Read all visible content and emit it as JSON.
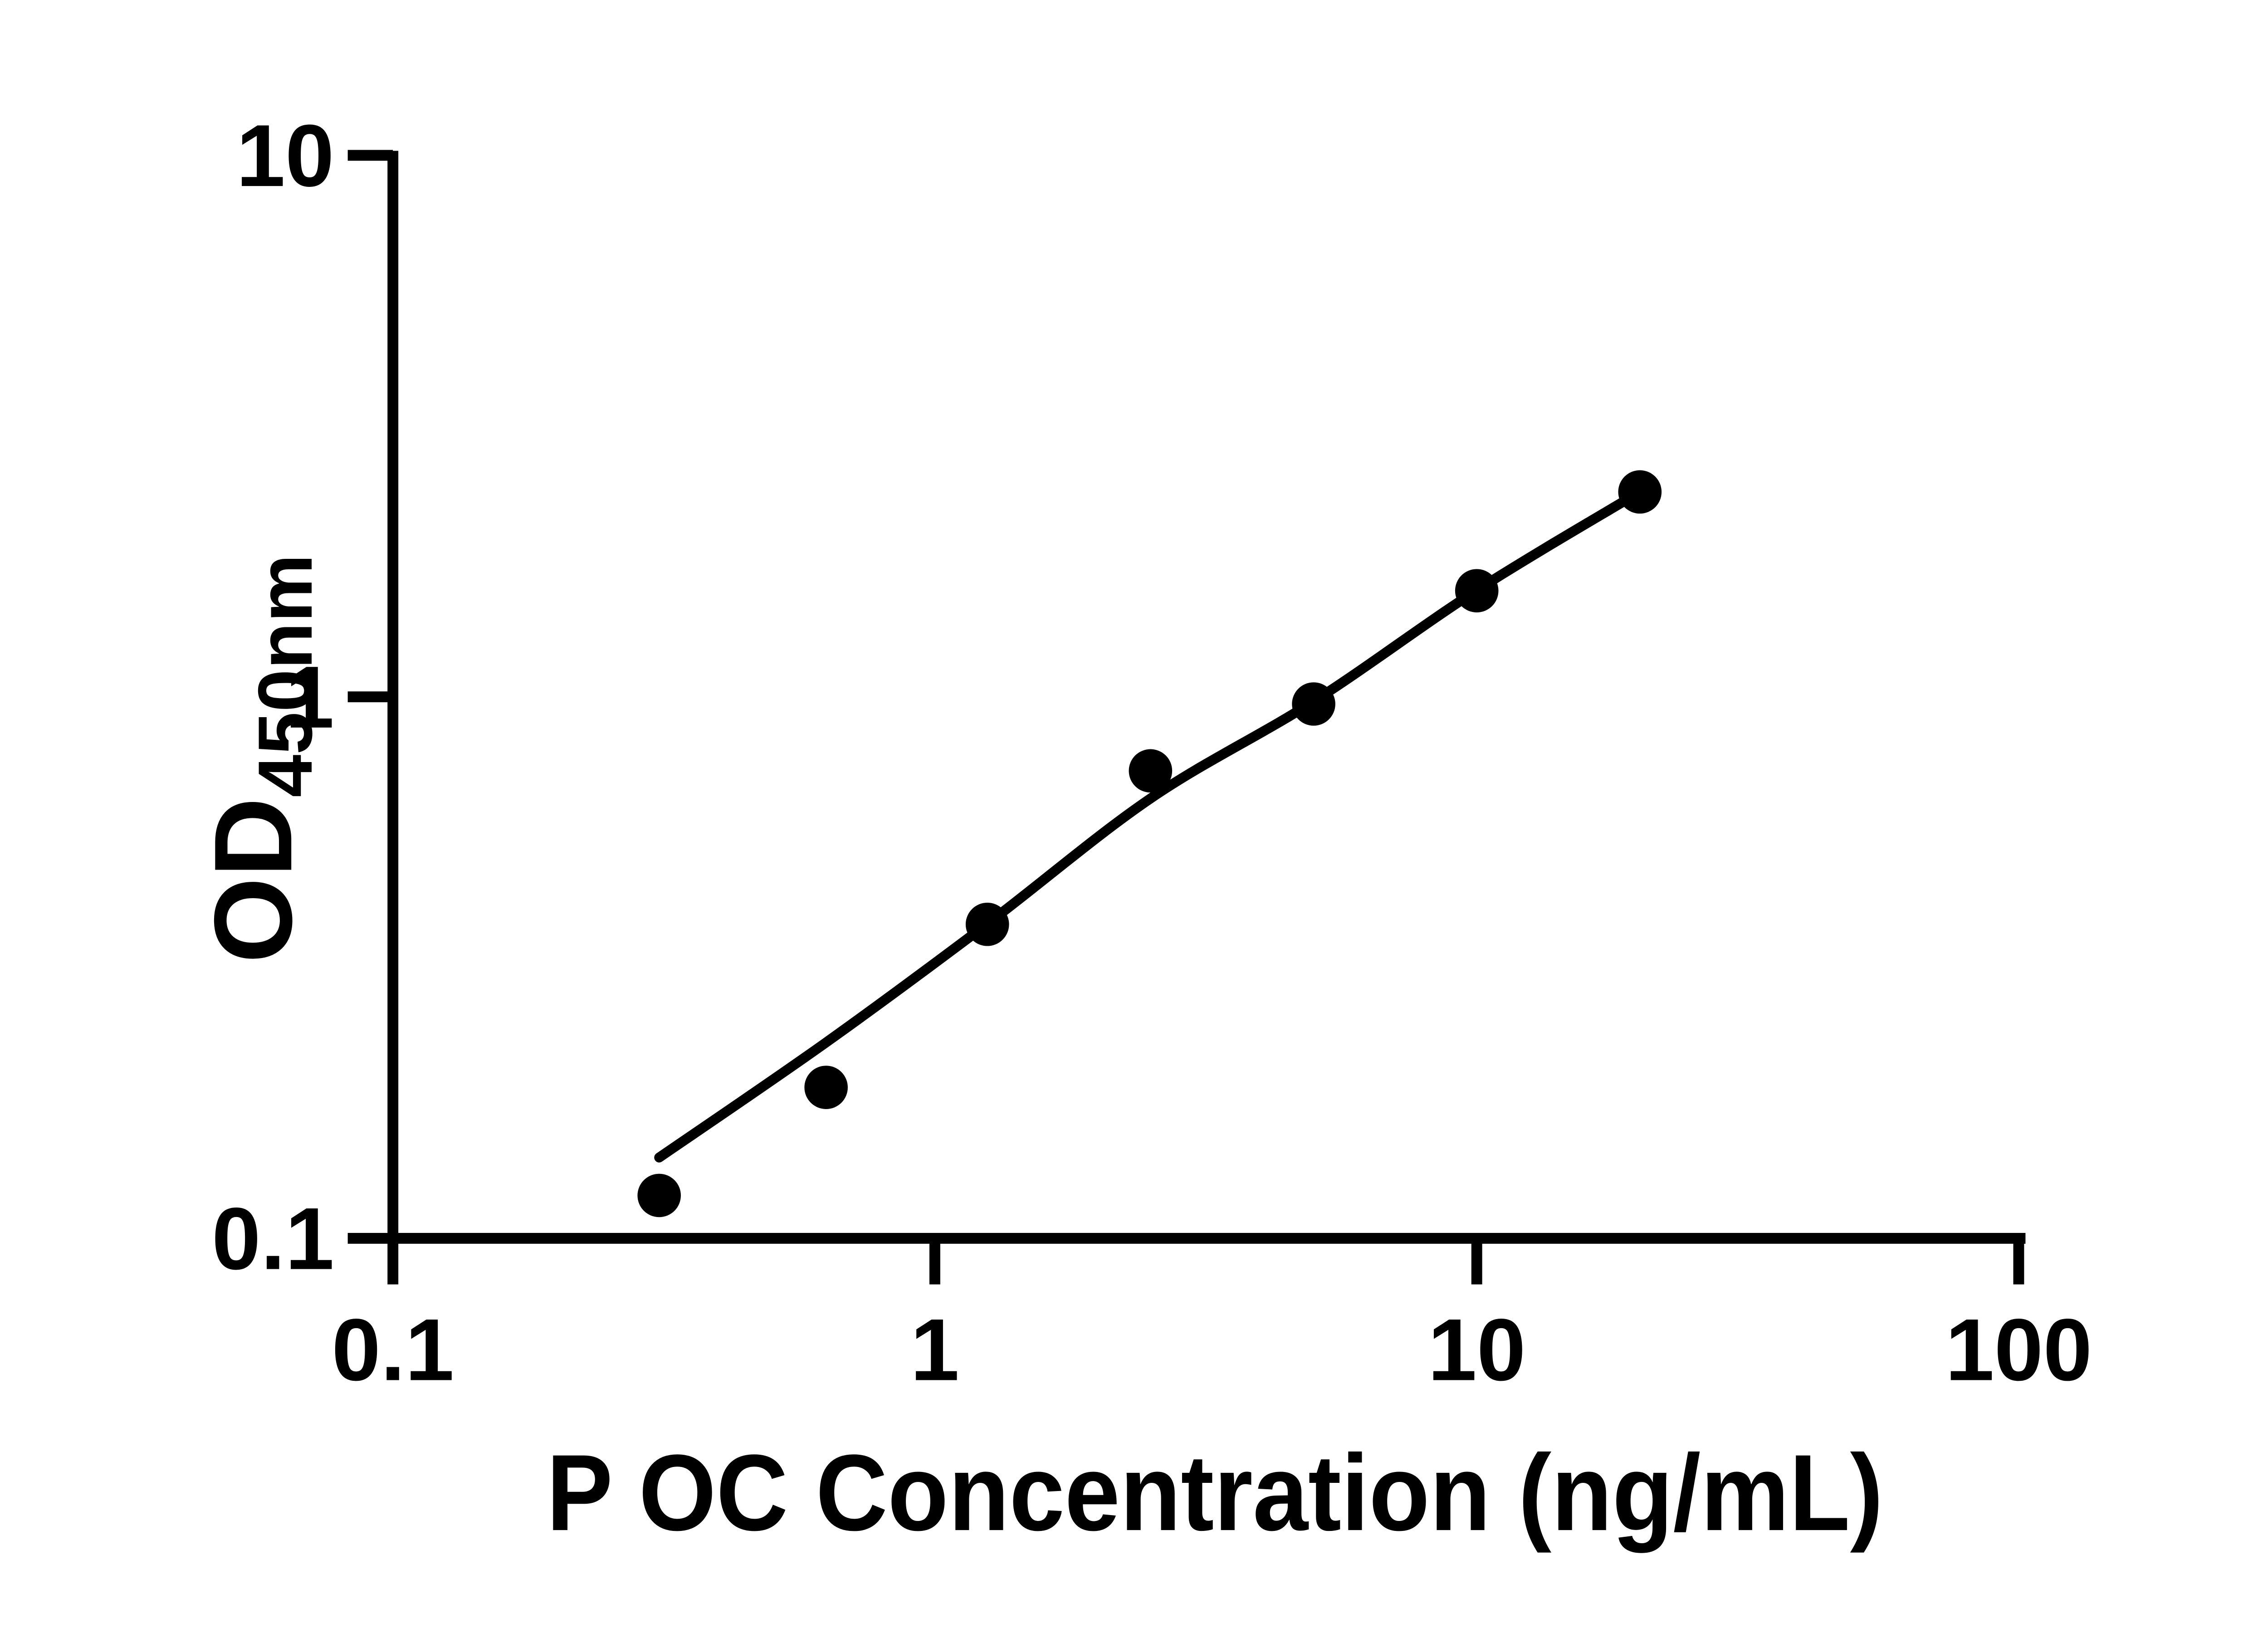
{
  "figure": {
    "background_color": "#ffffff",
    "ink_color": "#000000"
  },
  "chart_data": {
    "type": "scatter",
    "subtype": "ELISA standard curve with fitted line",
    "title": "",
    "xlabel": "P OC Concentration (ng/mL)",
    "ylabel_prefix": "OD",
    "ylabel_subscript": "450nm",
    "x_scale": "log10",
    "y_scale": "log10",
    "xlim": [
      0.1,
      100
    ],
    "ylim": [
      0.1,
      10
    ],
    "grid": false,
    "legend": "none",
    "x_ticks": [
      {
        "value": 0.1,
        "label": "0.1"
      },
      {
        "value": 1,
        "label": "1"
      },
      {
        "value": 10,
        "label": "10"
      },
      {
        "value": 100,
        "label": "100"
      }
    ],
    "y_ticks": [
      {
        "value": 0.1,
        "label": "0.1"
      },
      {
        "value": 1,
        "label": "1"
      },
      {
        "value": 10,
        "label": "10"
      }
    ],
    "series": [
      {
        "name": "standard-points",
        "marker": "filled-circle",
        "color": "#000000",
        "points": [
          {
            "x": 0.31,
            "y": 0.12
          },
          {
            "x": 0.63,
            "y": 0.19
          },
          {
            "x": 1.25,
            "y": 0.38
          },
          {
            "x": 2.5,
            "y": 0.73
          },
          {
            "x": 5,
            "y": 0.97
          },
          {
            "x": 10,
            "y": 1.57
          },
          {
            "x": 20,
            "y": 2.39
          }
        ]
      }
    ],
    "fit_curve": {
      "name": "fitted-line",
      "color": "#000000",
      "anchors": [
        {
          "x": 0.31,
          "y": 0.141
        },
        {
          "x": 0.63,
          "y": 0.23
        },
        {
          "x": 1.25,
          "y": 0.381
        },
        {
          "x": 2.5,
          "y": 0.649
        },
        {
          "x": 5,
          "y": 0.981
        },
        {
          "x": 10,
          "y": 1.573
        },
        {
          "x": 20,
          "y": 2.391
        }
      ]
    }
  }
}
